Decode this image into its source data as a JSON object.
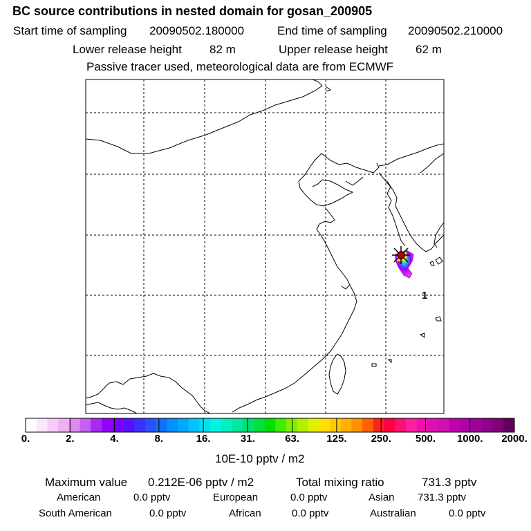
{
  "header": {
    "title": "BC  source contributions in nested domain for gosan_200905",
    "start_label": "Start time of sampling",
    "start_value": "20090502.180000",
    "end_label": "End time of sampling",
    "end_value": "20090502.210000",
    "lower_label": "Lower release height",
    "lower_value": "82 m",
    "upper_label": "Upper release height",
    "upper_value": "62 m",
    "tracer_note": "Passive tracer used, meteorological data are from ECMWF"
  },
  "map": {
    "marker_label": "1",
    "receptor": "gosan"
  },
  "legend": {
    "ticks": [
      "0.",
      "2.",
      "4.",
      "8.",
      "16.",
      "31.",
      "63.",
      "125.",
      "250.",
      "500.",
      "1000.",
      "2000."
    ],
    "colors": [
      "#ffffff",
      "#fbe6fb",
      "#f6ccf6",
      "#f0b0f0",
      "#de88f0",
      "#c560f0",
      "#ab28f0",
      "#9400ff",
      "#7a00ff",
      "#5a10ff",
      "#3a30ff",
      "#2850ff",
      "#1070ff",
      "#0090ff",
      "#00a8ff",
      "#00c4ff",
      "#00e0f0",
      "#00f4e0",
      "#00f0c0",
      "#00e8a0",
      "#00e070",
      "#00e040",
      "#00e000",
      "#40ec00",
      "#80f000",
      "#b0f000",
      "#e0f000",
      "#ffe000",
      "#ffc800",
      "#ffb000",
      "#ff9000",
      "#ff6000",
      "#ff2020",
      "#ff0040",
      "#ff1070",
      "#ff20a0",
      "#f010b0",
      "#e010b0",
      "#d010b0",
      "#c000b0",
      "#b000a8",
      "#a00098",
      "#900088",
      "#800078",
      "#60005a"
    ],
    "units": "10E-10 pptv / m2"
  },
  "summary": {
    "max_label": "Maximum value",
    "max_value": "0.212E-06 pptv / m2",
    "total_label": "Total mixing ratio",
    "total_value": "731.3 pptv",
    "regions": [
      {
        "name": "American",
        "value": "0.0 pptv"
      },
      {
        "name": "European",
        "value": "0.0 pptv"
      },
      {
        "name": "Asian",
        "value": "731.3 pptv"
      },
      {
        "name": "South American",
        "value": "0.0 pptv"
      },
      {
        "name": "African",
        "value": "0.0 pptv"
      },
      {
        "name": "Australian",
        "value": "0.0 pptv"
      }
    ]
  }
}
